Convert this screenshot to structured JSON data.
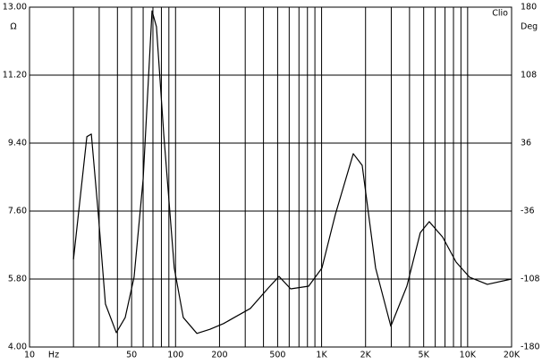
{
  "chart_data": {
    "type": "line",
    "x_label": "Hz",
    "y_label": "Ω",
    "y2_label": "Deg",
    "annotation": "Clio",
    "log_x": true,
    "grid": true,
    "color": "#000000",
    "x": [
      20,
      24.7,
      26.5,
      29.6,
      33.1,
      39.3,
      45.2,
      52,
      60,
      69,
      74,
      83,
      98,
      113,
      140,
      172,
      213,
      252,
      325,
      431,
      511,
      614,
      815,
      1005,
      1242,
      1648,
      1897,
      2344,
      2979,
      3837,
      4742,
      5458,
      6745,
      8336,
      10300,
      13650,
      20000
    ],
    "values": [
      6.32,
      9.57,
      9.64,
      7.51,
      5.14,
      4.38,
      4.78,
      5.85,
      8.45,
      12.9,
      12.48,
      9.64,
      6.09,
      4.78,
      4.36,
      4.47,
      4.62,
      4.78,
      5.02,
      5.56,
      5.87,
      5.54,
      5.61,
      6.09,
      7.51,
      9.12,
      8.81,
      6.09,
      4.55,
      5.61,
      7.03,
      7.32,
      6.91,
      6.25,
      5.85,
      5.66,
      5.8
    ],
    "xlim": [
      10,
      20000
    ],
    "xticks": [
      10,
      50,
      100,
      200,
      500,
      {
        "value": 1000,
        "label": "1K"
      },
      {
        "value": 2000,
        "label": "2K"
      },
      {
        "value": 5000,
        "label": "5K"
      },
      {
        "value": 10000,
        "label": "10K"
      },
      {
        "value": 20000,
        "label": "20K"
      }
    ],
    "x_minor_grid": [
      20,
      30,
      40,
      60,
      70,
      80,
      90,
      300,
      400,
      600,
      700,
      800,
      900,
      3000,
      4000,
      6000,
      7000,
      8000,
      9000
    ],
    "ylim": [
      4,
      13
    ],
    "yticks": [
      {
        "value": 4,
        "label": "4.00"
      },
      {
        "value": 5.8,
        "label": "5.80"
      },
      {
        "value": 7.6,
        "label": "7.60"
      },
      {
        "value": 9.4,
        "label": "9.40"
      },
      {
        "value": 11.2,
        "label": "11.20"
      },
      {
        "value": 13,
        "label": "13.00"
      }
    ],
    "y2lim": [
      -180,
      180
    ],
    "y2ticks": [
      -180,
      -108,
      -36,
      36,
      108,
      180
    ]
  }
}
